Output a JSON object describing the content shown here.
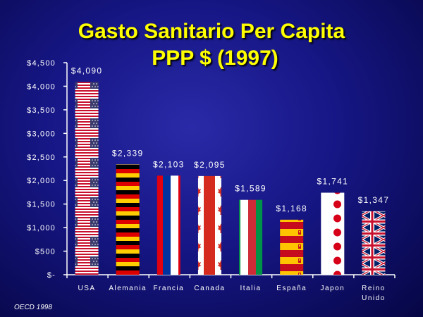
{
  "title": "Gasto Sanitario Per Capita",
  "subtitle": "PPP $ (1997)",
  "source": "OECD 1998",
  "chart_data": {
    "type": "bar",
    "title": "Gasto Sanitario Per Capita",
    "subtitle": "PPP $ (1997)",
    "categories": [
      "USA",
      "Alemania",
      "Francia",
      "Canada",
      "Italia",
      "España",
      "Japon",
      "Reino Unido"
    ],
    "category_lines": [
      [
        "USA"
      ],
      [
        "Alemania"
      ],
      [
        "Francia"
      ],
      [
        "Canada"
      ],
      [
        "Italia"
      ],
      [
        "España"
      ],
      [
        "Japon"
      ],
      [
        "Reino",
        "Unido"
      ]
    ],
    "values": [
      4090,
      2339,
      2103,
      2095,
      1589,
      1168,
      1741,
      1347
    ],
    "value_labels": [
      "$4,090",
      "$2,339",
      "$2,103",
      "$2,095",
      "$1,589",
      "$1,168",
      "$1,741",
      "$1,347"
    ],
    "bar_fills": [
      "flag-usa",
      "flag-germany",
      "flag-france",
      "flag-canada",
      "flag-italy",
      "flag-spain",
      "flag-japan",
      "flag-uk"
    ],
    "yticks": [
      0,
      500,
      1000,
      1500,
      2000,
      2500,
      3000,
      3500,
      4000,
      4500
    ],
    "ytick_labels": [
      "$-",
      "$500",
      "$1,000",
      "$1,500",
      "$2,000",
      "$2,500",
      "$3,000",
      "$3,500",
      "$4,000",
      "$4,500"
    ],
    "ylim": [
      0,
      4500
    ],
    "xlabel": "",
    "ylabel": "",
    "grid": false,
    "legend": "none"
  }
}
